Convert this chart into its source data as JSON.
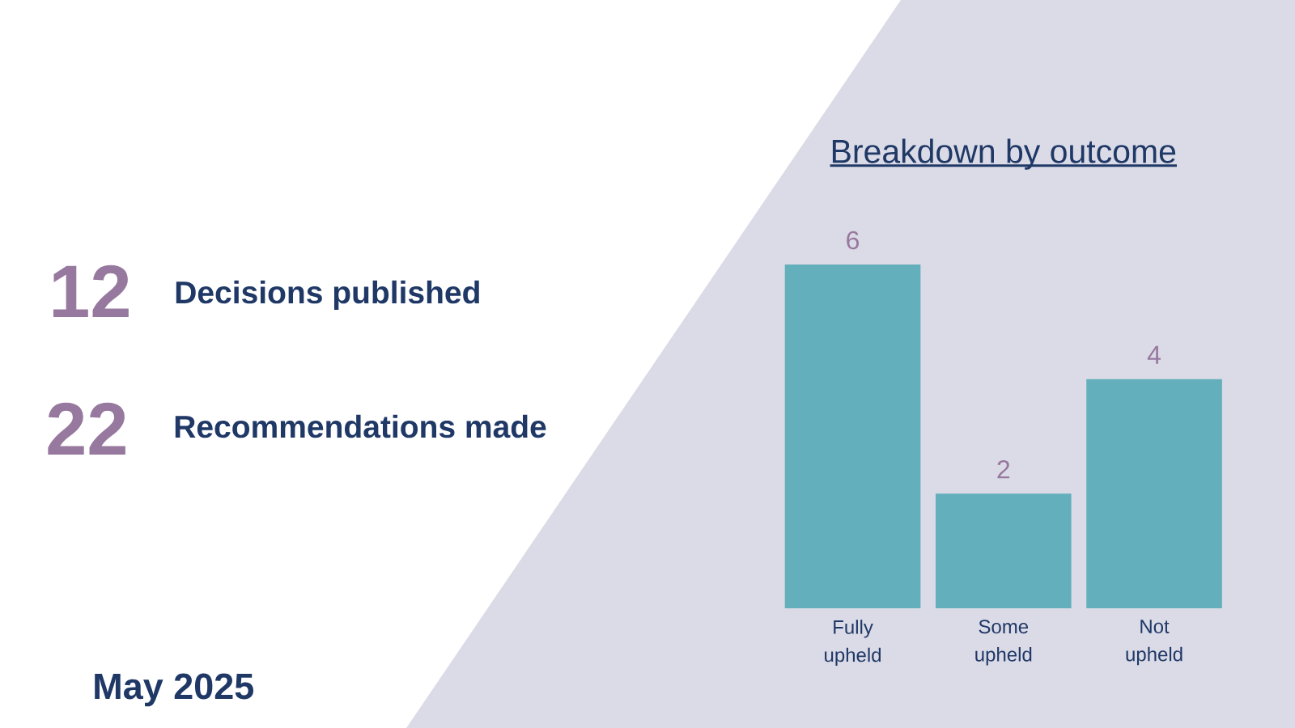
{
  "chart_data": [
    {
      "type": "other",
      "annotations": [
        "12",
        "Decisions published",
        "22",
        "Recommendations made",
        "May 2025"
      ]
    },
    {
      "type": "bar",
      "title": "Breakdown by outcome",
      "categories": [
        "Fully upheld",
        "Some upheld",
        "Not upheld"
      ],
      "values": [
        6,
        2,
        4
      ],
      "color": "#63afbb",
      "data_labels": true
    }
  ]
}
